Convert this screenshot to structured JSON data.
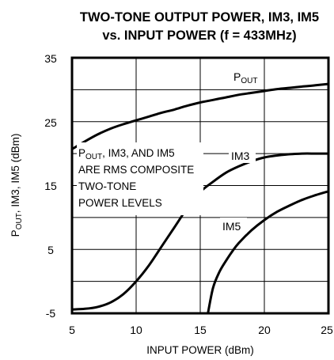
{
  "chart_data": {
    "type": "line",
    "title_line1": "TWO-TONE OUTPUT POWER, IM3, IM5",
    "title_line2": "vs. INPUT POWER (f = 433MHz)",
    "xlabel": "INPUT POWER (dBm)",
    "ylabel": {
      "main": "P",
      "sub": "OUT",
      "rest": ", IM3, IM5 (dBm)"
    },
    "xlim": [
      5,
      25
    ],
    "ylim": [
      -5,
      35
    ],
    "x_ticks": [
      "5",
      "10",
      "15",
      "20",
      "25"
    ],
    "y_ticks": [
      "35",
      "25",
      "15",
      "5",
      "-5"
    ],
    "grid": true,
    "annotation": {
      "line1": {
        "main": "P",
        "sub": "OUT",
        "rest": ", IM3, AND IM5"
      },
      "line2": "ARE RMS COMPOSITE",
      "line3": "TWO-TONE",
      "line4": "POWER LEVELS"
    },
    "series": [
      {
        "name": "POUT",
        "label": {
          "main": "P",
          "sub": "OUT"
        },
        "x": [
          5,
          6,
          7,
          8,
          9,
          10,
          11,
          12,
          13,
          14,
          15,
          16,
          17,
          18,
          19,
          20,
          21,
          22,
          23,
          24,
          25
        ],
        "y": [
          20.7,
          21.9,
          23.0,
          23.9,
          24.6,
          25.2,
          25.8,
          26.4,
          26.9,
          27.5,
          28.0,
          28.4,
          28.8,
          29.2,
          29.5,
          29.8,
          30.1,
          30.3,
          30.5,
          30.7,
          30.9
        ]
      },
      {
        "name": "IM3",
        "label": {
          "main": "IM3",
          "sub": ""
        },
        "x": [
          5,
          6,
          7,
          8,
          9,
          10,
          11,
          12,
          13,
          14,
          15,
          16,
          17,
          18,
          19,
          20,
          21,
          22,
          23,
          24,
          25
        ],
        "y": [
          -4.4,
          -4.3,
          -4.0,
          -3.3,
          -2.0,
          0.0,
          2.5,
          5.5,
          8.5,
          11.5,
          14.0,
          15.6,
          17.0,
          18.0,
          18.8,
          19.4,
          19.7,
          19.9,
          20.0,
          20.0,
          20.0
        ]
      },
      {
        "name": "IM5",
        "label": {
          "main": "IM5",
          "sub": ""
        },
        "x": [
          15.6,
          16,
          16.5,
          17,
          17.5,
          18,
          19,
          20,
          21,
          22,
          23,
          24,
          25
        ],
        "y": [
          -5.0,
          -1.0,
          1.5,
          3.2,
          4.7,
          6.0,
          8.0,
          9.6,
          10.9,
          11.9,
          12.8,
          13.5,
          14.1
        ]
      }
    ]
  }
}
